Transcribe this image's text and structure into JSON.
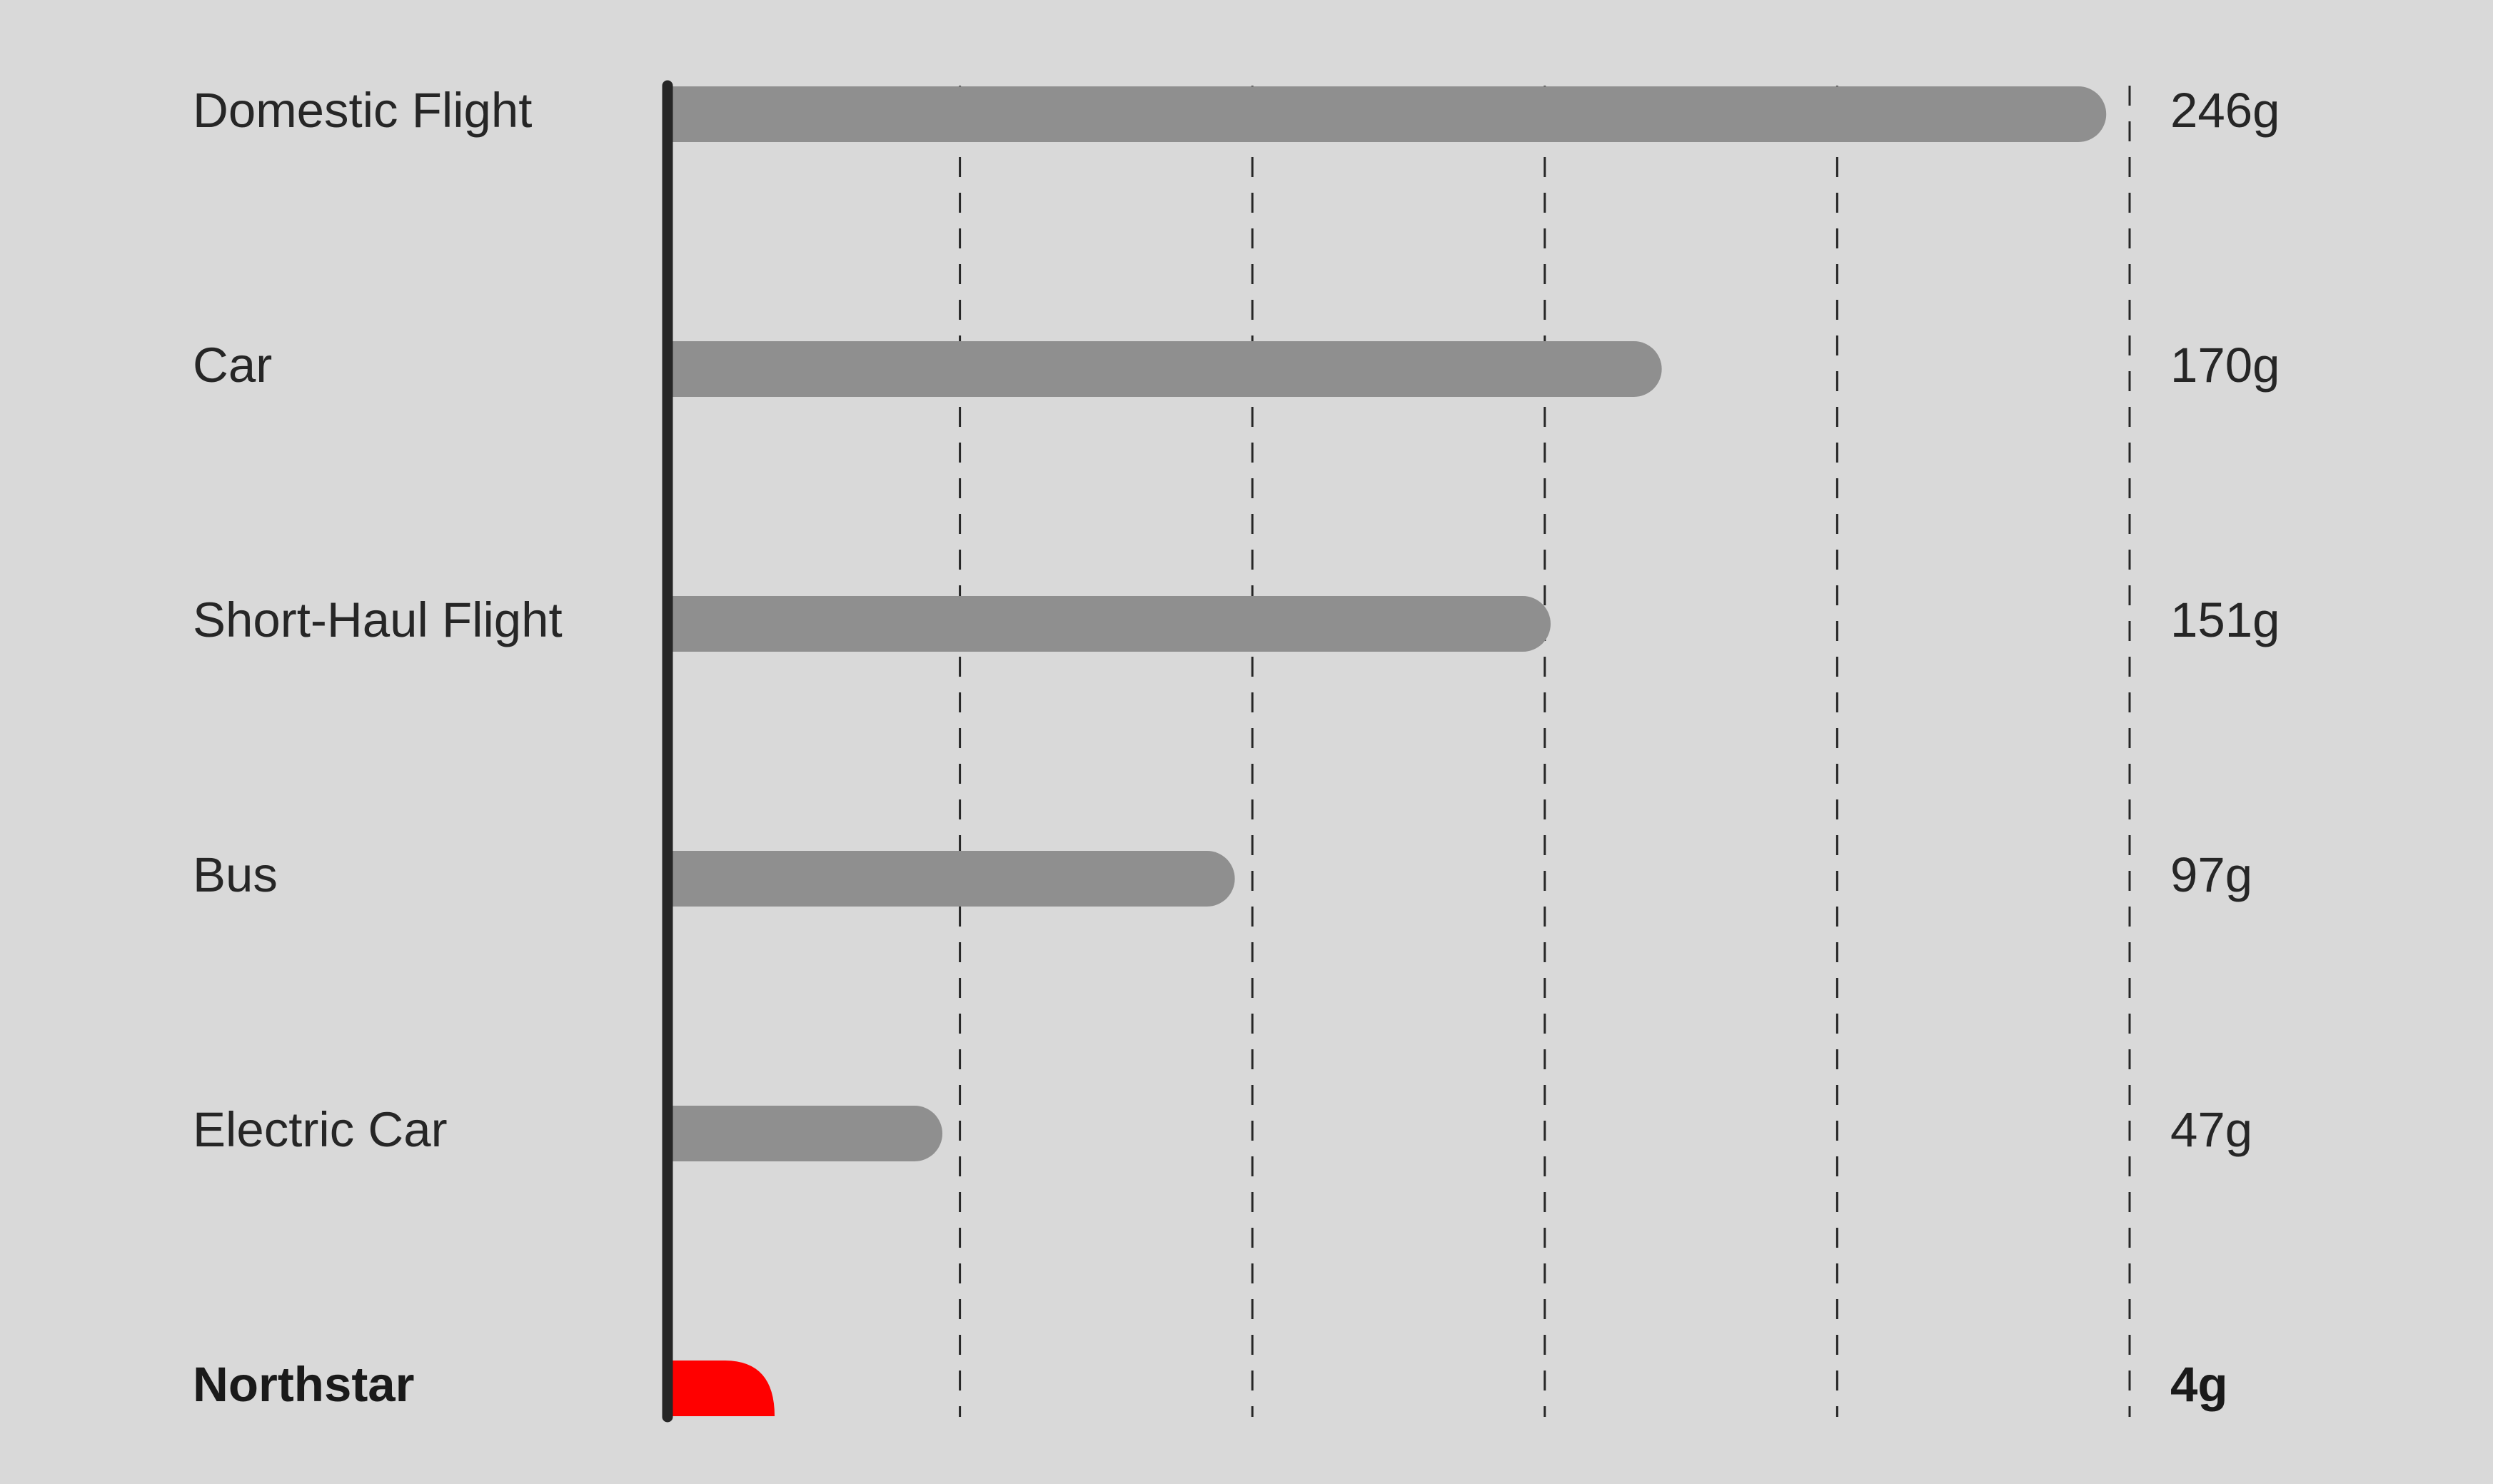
{
  "chart_data": {
    "type": "bar",
    "orientation": "horizontal",
    "categories": [
      "Domestic Flight",
      "Car",
      "Short-Haul Flight",
      "Bus",
      "Electric Car",
      "Northstar"
    ],
    "values": [
      246,
      170,
      151,
      97,
      47,
      4
    ],
    "value_labels": [
      "246g",
      "170g",
      "151g",
      "97g",
      "47g",
      "4g"
    ],
    "highlight_category": "Northstar",
    "xlim": [
      0,
      250
    ],
    "gridlines": [
      50,
      100,
      150,
      200,
      250
    ],
    "grid": "vertical dashed",
    "title": "",
    "xlabel": "",
    "ylabel": "",
    "colors": {
      "background": "#d9d9d9",
      "bar": "#8f8f8f",
      "highlight_bar": "#ff0000",
      "axis": "#262626",
      "text": "#262626"
    }
  }
}
